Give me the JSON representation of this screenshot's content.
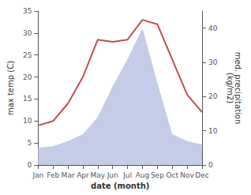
{
  "chart_data": {
    "type": "line",
    "xlabel": "date (month)",
    "ylabel": "max temp (C)",
    "y2label": "med. precipitation\n(kg/m2)",
    "categories": [
      "Jan",
      "Feb",
      "Mar",
      "Apr",
      "May",
      "Jun",
      "Jul",
      "Aug",
      "Sep",
      "Oct",
      "Nov",
      "Dec"
    ],
    "series": [
      {
        "type": "area",
        "axis": "y2",
        "color": "#c5cce8",
        "values": [
          5.0,
          5.5,
          7.0,
          9.0,
          14.0,
          23.0,
          31.0,
          40.0,
          24.0,
          9.0,
          7.0,
          6.0
        ]
      },
      {
        "type": "line",
        "color": "#c0504d",
        "values": [
          9.0,
          10.0,
          14.0,
          20.0,
          28.5,
          28.0,
          28.5,
          33.0,
          32.0,
          24.0,
          16.0,
          12.0
        ]
      }
    ],
    "ylim": [
      0,
      35
    ],
    "yticks": [
      0,
      5,
      10,
      15,
      20,
      25,
      30,
      35
    ],
    "y2lim": [
      0,
      45
    ],
    "y2ticks": [
      0,
      10,
      20,
      30,
      40
    ],
    "grid": false
  }
}
